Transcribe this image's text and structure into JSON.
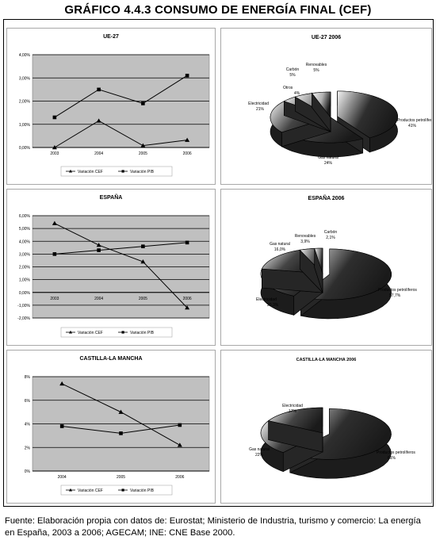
{
  "title": "GRÁFICO 4.4.3 CONSUMO DE ENERGÍA FINAL (CEF)",
  "footnote": "Fuente: Elaboración propia con datos de: Eurostat; Ministerio de Industria, turismo y comercio: La energía en España, 2003 a 2006; AGECAM; INE: CNE Base 2000.",
  "colors": {
    "plot_bg": "#c0c0c0",
    "grid": "#000000",
    "line": "#000000",
    "pie_dark": "#2a2a2a",
    "pie_light": "#f0f0f0"
  },
  "chart_data": [
    {
      "type": "line",
      "title": "UE-27",
      "x": [
        "2003",
        "2004",
        "2005",
        "2006"
      ],
      "yticks": [
        "0,00%",
        "1,00%",
        "2,00%",
        "3,00%",
        "4,00%"
      ],
      "ylim": [
        0,
        4
      ],
      "series": [
        {
          "name": "Variación CEF",
          "marker": "triangle",
          "values": [
            0.0,
            1.15,
            0.08,
            0.32
          ]
        },
        {
          "name": "Variación PIB",
          "marker": "square",
          "values": [
            1.3,
            2.5,
            1.9,
            3.1
          ]
        }
      ]
    },
    {
      "type": "pie",
      "title": "UE-27      2006",
      "slices": [
        {
          "label": "Productos petrolíferos",
          "value_label": "41%",
          "value": 41
        },
        {
          "label": "Gas natural",
          "value_label": "24%",
          "value": 24
        },
        {
          "label": "Electricidad",
          "value_label": "21%",
          "value": 21
        },
        {
          "label": "Otros",
          "value_label": "4%",
          "value": 4
        },
        {
          "label": "Carbón",
          "value_label": "5%",
          "value": 5
        },
        {
          "label": "Renovables",
          "value_label": "5%",
          "value": 5
        }
      ]
    },
    {
      "type": "line",
      "title": "ESPAÑA",
      "x": [
        "2003",
        "2004",
        "2005",
        "2006"
      ],
      "yticks": [
        "-2,00%",
        "-1,00%",
        "0,00%",
        "1,00%",
        "2,00%",
        "3,00%",
        "4,00%",
        "5,00%",
        "6,00%"
      ],
      "ylim": [
        -2,
        6
      ],
      "series": [
        {
          "name": "Variación CEF",
          "marker": "triangle",
          "values": [
            5.4,
            3.7,
            2.4,
            -1.2
          ]
        },
        {
          "name": "Variación PIB",
          "marker": "square",
          "values": [
            3.0,
            3.3,
            3.6,
            3.9
          ]
        }
      ]
    },
    {
      "type": "pie",
      "title": "ESPAÑA 2006",
      "slices": [
        {
          "label": "Productos petrolíferos",
          "value_label": "57,7%",
          "value": 57.7
        },
        {
          "label": "Electricidad",
          "value_label": "20,3%",
          "value": 20.3
        },
        {
          "label": "Gas natural",
          "value_label": "16,0%",
          "value": 16.0
        },
        {
          "label": "Renovables",
          "value_label": "3,9%",
          "value": 3.9
        },
        {
          "label": "Carbón",
          "value_label": "2,1%",
          "value": 2.1
        }
      ]
    },
    {
      "type": "line",
      "title": "CASTILLA-LA MANCHA",
      "x": [
        "2004",
        "2005",
        "2006"
      ],
      "yticks": [
        "0%",
        "2%",
        "4%",
        "6%",
        "8%"
      ],
      "ylim": [
        0,
        8
      ],
      "series": [
        {
          "name": "Variación CEF",
          "marker": "triangle",
          "values": [
            7.4,
            5.0,
            2.2
          ]
        },
        {
          "name": "Variación PIB",
          "marker": "square",
          "values": [
            3.8,
            3.2,
            3.9
          ]
        }
      ]
    },
    {
      "type": "pie",
      "title": "CASTILLA-LA MANCHA 2006",
      "slices": [
        {
          "label": "Productos petrolíferos",
          "value_label": "61%",
          "value": 61
        },
        {
          "label": "Gas natural",
          "value_label": "22%",
          "value": 22
        },
        {
          "label": "Electricidad",
          "value_label": "17%",
          "value": 17
        }
      ]
    }
  ]
}
